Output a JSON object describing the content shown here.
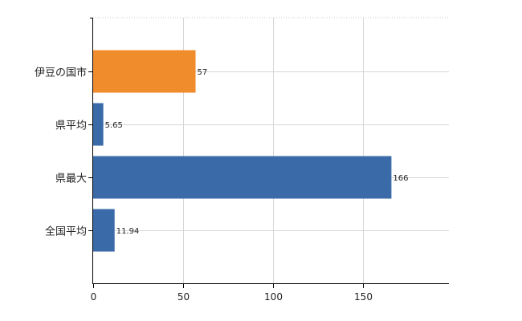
{
  "chart_data": {
    "type": "bar",
    "orientation": "horizontal",
    "categories": [
      "伊豆の国市",
      "県平均",
      "県最大",
      "全国平均"
    ],
    "values": [
      57,
      5.65,
      166,
      11.94
    ],
    "value_labels": [
      "57",
      "5.65",
      "166",
      "11.94"
    ],
    "bar_colors": [
      "#f08c2c",
      "#3a6ba8",
      "#3a6ba8",
      "#3a6ba8"
    ],
    "xlim": [
      0,
      198
    ],
    "xticks": [
      0,
      50,
      100,
      150
    ],
    "xtick_labels": [
      "0",
      "50",
      "100",
      "150"
    ],
    "grid": true,
    "title": "",
    "xlabel": "",
    "ylabel": ""
  }
}
